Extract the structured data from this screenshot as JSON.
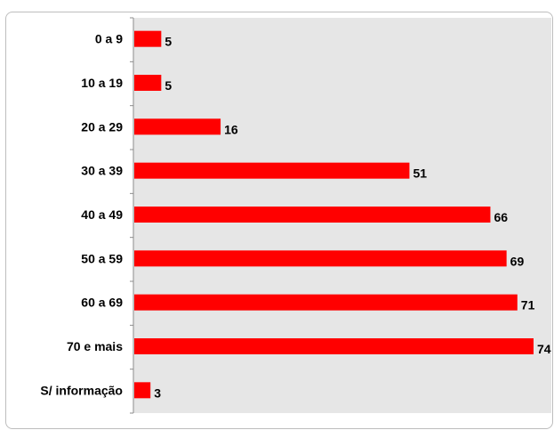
{
  "chart_data": {
    "type": "bar",
    "orientation": "horizontal",
    "categories": [
      "0 a 9",
      "10 a 19",
      "20 a 29",
      "30 a 39",
      "40 a 49",
      "50 a 59",
      "60 a 69",
      "70 e mais",
      "S/ informação"
    ],
    "values": [
      5,
      5,
      16,
      51,
      66,
      69,
      71,
      74,
      3
    ],
    "value_labels": [
      "5",
      "5",
      "16",
      "51",
      "66",
      "69",
      "71",
      "74",
      "3"
    ],
    "title": "",
    "xlabel": "",
    "ylabel": "",
    "xlim": [
      0,
      74
    ],
    "grid": false,
    "legend": "none",
    "bar_color": "#ff0000",
    "plot_background": "#e6e6e6"
  }
}
